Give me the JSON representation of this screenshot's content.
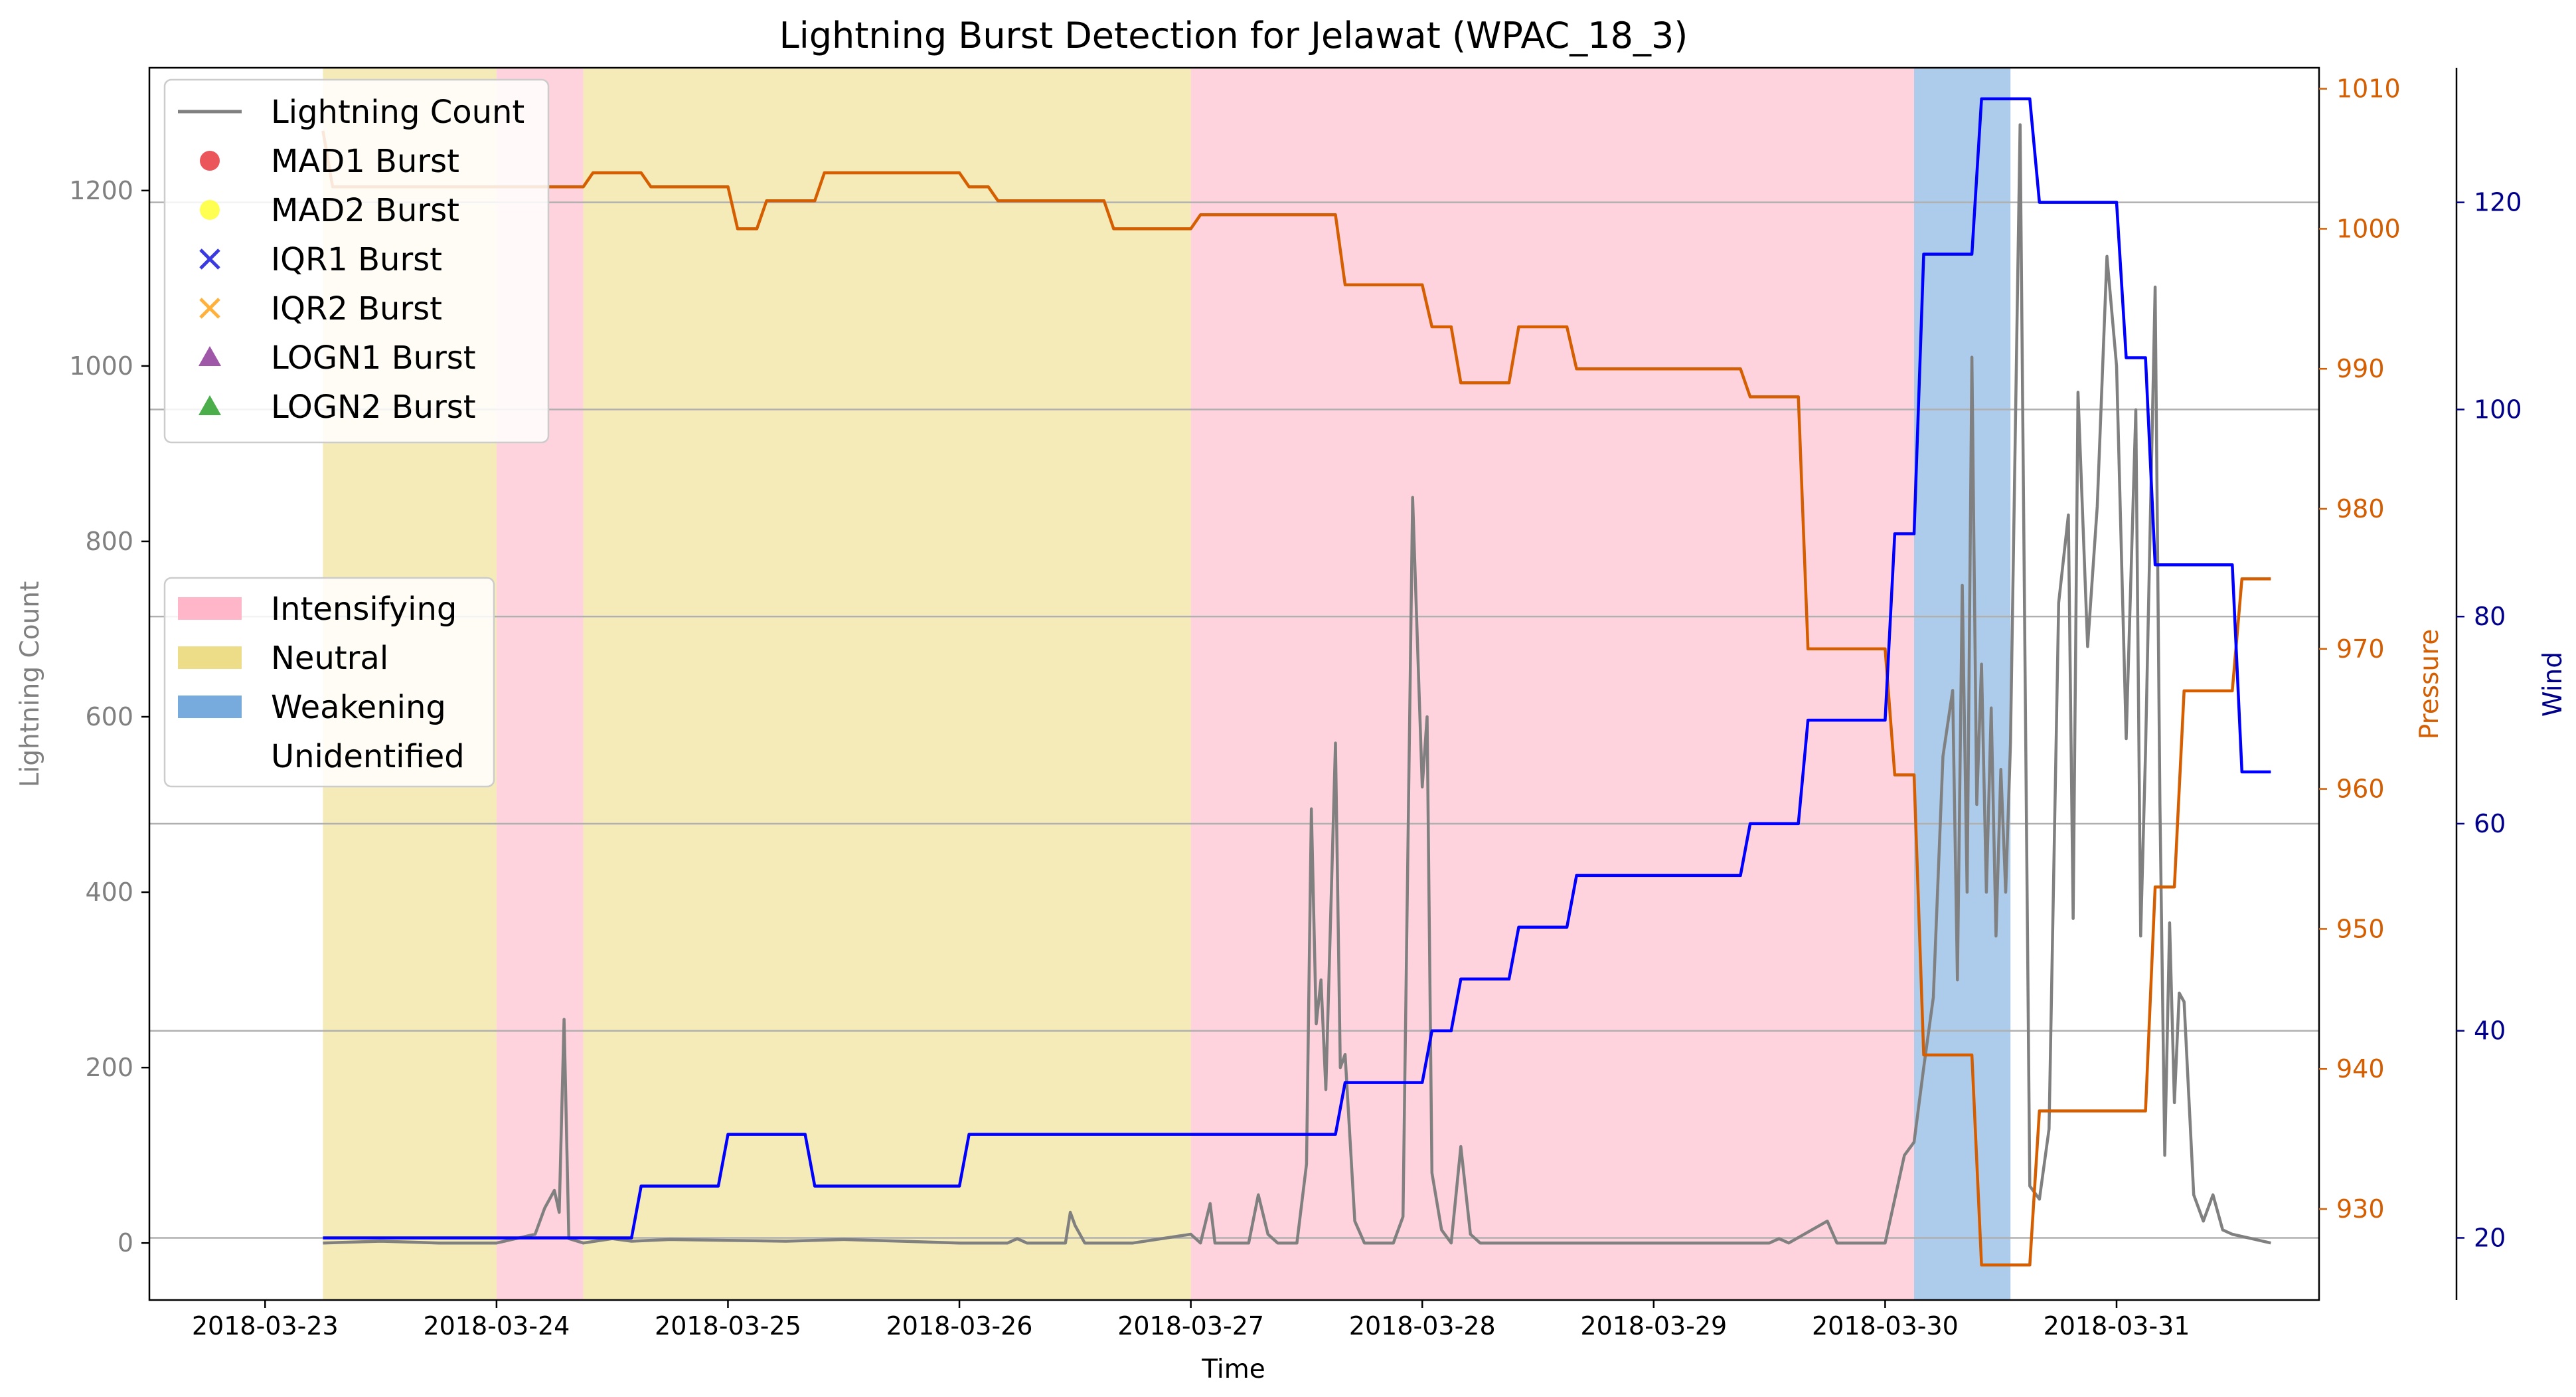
{
  "chart_data": {
    "type": "line",
    "title": "Lightning Burst Detection for Jelawat (WPAC_18_3)",
    "xlabel": "Time",
    "ylabel_left": "Lightning Count",
    "ylabel_pressure": "Pressure",
    "ylabel_wind": "Wind",
    "x_ticks": [
      "2018-03-23",
      "2018-03-24",
      "2018-03-25",
      "2018-03-26",
      "2018-03-27",
      "2018-03-28",
      "2018-03-29",
      "2018-03-30",
      "2018-03-31"
    ],
    "x_range": [
      "2018-03-22T12:00",
      "2018-03-31T21:00"
    ],
    "ylim_left": [
      -65,
      1340
    ],
    "yticks_left": [
      0,
      200,
      400,
      600,
      800,
      1000,
      1200
    ],
    "ylim_pressure": [
      923.5,
      1011.5
    ],
    "yticks_pressure": [
      930,
      940,
      950,
      960,
      970,
      980,
      990,
      1000,
      1010
    ],
    "ylim_wind": [
      14,
      133
    ],
    "yticks_wind": [
      20,
      40,
      60,
      80,
      100,
      120
    ],
    "grid": "horizontal at wind ticks",
    "colors": {
      "lightning": "#808080",
      "pressure": "#d55e00",
      "wind": "#0000ff",
      "intensifying": "#ffb6c8",
      "neutral": "#eedd88",
      "weakening": "#77aadd",
      "pressure_axis": "#d55e00",
      "wind_axis": "#00008b"
    },
    "legend_series": {
      "placement": "top-left",
      "entries": [
        {
          "label": "Lightning Count",
          "marker": "line",
          "color": "#808080"
        },
        {
          "label": "MAD1 Burst",
          "marker": "circle",
          "color": "#e8383d"
        },
        {
          "label": "MAD2 Burst",
          "marker": "circle",
          "color": "#ffff33"
        },
        {
          "label": "IQR1 Burst",
          "marker": "x",
          "color": "#3a3ae0"
        },
        {
          "label": "IQR2 Burst",
          "marker": "x",
          "color": "#ffb13b"
        },
        {
          "label": "LOGN1 Burst",
          "marker": "triangle",
          "color": "#8e3a98"
        },
        {
          "label": "LOGN2 Burst",
          "marker": "triangle",
          "color": "#2ca02c"
        }
      ]
    },
    "legend_phases": {
      "placement": "center-left",
      "entries": [
        {
          "label": "Intensifying",
          "color": "#ffb6c8"
        },
        {
          "label": "Neutral",
          "color": "#eedd88"
        },
        {
          "label": "Weakening",
          "color": "#77aadd"
        },
        {
          "label": "Unidentified",
          "color": "none"
        }
      ]
    },
    "phases": [
      {
        "phase": "Neutral",
        "start": "2018-03-23T06:00",
        "end": "2018-03-24T00:00"
      },
      {
        "phase": "Intensifying",
        "start": "2018-03-24T00:00",
        "end": "2018-03-24T09:00"
      },
      {
        "phase": "Neutral",
        "start": "2018-03-24T09:00",
        "end": "2018-03-27T00:00"
      },
      {
        "phase": "Intensifying",
        "start": "2018-03-27T00:00",
        "end": "2018-03-30T03:00"
      },
      {
        "phase": "Weakening",
        "start": "2018-03-30T03:00",
        "end": "2018-03-30T13:00"
      }
    ],
    "series": [
      {
        "name": "Lightning Count",
        "axis": "left",
        "points": [
          [
            "2018-03-23T06:00",
            0
          ],
          [
            "2018-03-23T12:00",
            2
          ],
          [
            "2018-03-23T18:00",
            0
          ],
          [
            "2018-03-24T00:00",
            0
          ],
          [
            "2018-03-24T04:00",
            10
          ],
          [
            "2018-03-24T05:00",
            40
          ],
          [
            "2018-03-24T06:00",
            60
          ],
          [
            "2018-03-24T06:30",
            35
          ],
          [
            "2018-03-24T07:00",
            255
          ],
          [
            "2018-03-24T07:30",
            5
          ],
          [
            "2018-03-24T09:00",
            0
          ],
          [
            "2018-03-24T12:00",
            5
          ],
          [
            "2018-03-24T14:00",
            2
          ],
          [
            "2018-03-24T18:00",
            4
          ],
          [
            "2018-03-25T00:00",
            3
          ],
          [
            "2018-03-25T06:00",
            2
          ],
          [
            "2018-03-25T12:00",
            4
          ],
          [
            "2018-03-25T18:00",
            2
          ],
          [
            "2018-03-26T00:00",
            0
          ],
          [
            "2018-03-26T05:00",
            0
          ],
          [
            "2018-03-26T06:00",
            5
          ],
          [
            "2018-03-26T07:00",
            0
          ],
          [
            "2018-03-26T11:00",
            0
          ],
          [
            "2018-03-26T11:30",
            35
          ],
          [
            "2018-03-26T12:00",
            20
          ],
          [
            "2018-03-26T13:00",
            0
          ],
          [
            "2018-03-26T18:00",
            0
          ],
          [
            "2018-03-27T00:00",
            10
          ],
          [
            "2018-03-27T01:00",
            0
          ],
          [
            "2018-03-27T02:00",
            45
          ],
          [
            "2018-03-27T02:30",
            0
          ],
          [
            "2018-03-27T06:00",
            0
          ],
          [
            "2018-03-27T07:00",
            55
          ],
          [
            "2018-03-27T08:00",
            10
          ],
          [
            "2018-03-27T09:00",
            0
          ],
          [
            "2018-03-27T11:00",
            0
          ],
          [
            "2018-03-27T12:00",
            90
          ],
          [
            "2018-03-27T12:30",
            495
          ],
          [
            "2018-03-27T13:00",
            250
          ],
          [
            "2018-03-27T13:30",
            300
          ],
          [
            "2018-03-27T14:00",
            175
          ],
          [
            "2018-03-27T15:00",
            570
          ],
          [
            "2018-03-27T15:30",
            200
          ],
          [
            "2018-03-27T16:00",
            215
          ],
          [
            "2018-03-27T17:00",
            25
          ],
          [
            "2018-03-27T18:00",
            0
          ],
          [
            "2018-03-27T21:00",
            0
          ],
          [
            "2018-03-27T22:00",
            30
          ],
          [
            "2018-03-27T23:00",
            850
          ],
          [
            "2018-03-28T00:00",
            520
          ],
          [
            "2018-03-28T00:30",
            600
          ],
          [
            "2018-03-28T01:00",
            80
          ],
          [
            "2018-03-28T02:00",
            15
          ],
          [
            "2018-03-28T03:00",
            0
          ],
          [
            "2018-03-28T04:00",
            110
          ],
          [
            "2018-03-28T05:00",
            10
          ],
          [
            "2018-03-28T06:00",
            0
          ],
          [
            "2018-03-28T12:00",
            0
          ],
          [
            "2018-03-28T18:00",
            0
          ],
          [
            "2018-03-29T00:00",
            0
          ],
          [
            "2018-03-29T06:00",
            0
          ],
          [
            "2018-03-29T12:00",
            0
          ],
          [
            "2018-03-29T13:00",
            5
          ],
          [
            "2018-03-29T14:00",
            0
          ],
          [
            "2018-03-29T18:00",
            25
          ],
          [
            "2018-03-29T19:00",
            0
          ],
          [
            "2018-03-30T00:00",
            0
          ],
          [
            "2018-03-30T01:00",
            50
          ],
          [
            "2018-03-30T02:00",
            100
          ],
          [
            "2018-03-30T03:00",
            115
          ],
          [
            "2018-03-30T04:00",
            200
          ],
          [
            "2018-03-30T05:00",
            280
          ],
          [
            "2018-03-30T06:00",
            555
          ],
          [
            "2018-03-30T07:00",
            630
          ],
          [
            "2018-03-30T07:30",
            300
          ],
          [
            "2018-03-30T08:00",
            750
          ],
          [
            "2018-03-30T08:30",
            400
          ],
          [
            "2018-03-30T09:00",
            1010
          ],
          [
            "2018-03-30T09:30",
            500
          ],
          [
            "2018-03-30T10:00",
            660
          ],
          [
            "2018-03-30T10:30",
            400
          ],
          [
            "2018-03-30T11:00",
            610
          ],
          [
            "2018-03-30T11:30",
            350
          ],
          [
            "2018-03-30T12:00",
            540
          ],
          [
            "2018-03-30T12:30",
            400
          ],
          [
            "2018-03-30T13:00",
            570
          ],
          [
            "2018-03-30T14:00",
            1275
          ],
          [
            "2018-03-30T15:00",
            65
          ],
          [
            "2018-03-30T16:00",
            50
          ],
          [
            "2018-03-30T17:00",
            130
          ],
          [
            "2018-03-30T18:00",
            730
          ],
          [
            "2018-03-30T19:00",
            830
          ],
          [
            "2018-03-30T19:30",
            370
          ],
          [
            "2018-03-30T20:00",
            970
          ],
          [
            "2018-03-30T21:00",
            680
          ],
          [
            "2018-03-30T22:00",
            840
          ],
          [
            "2018-03-30T23:00",
            1125
          ],
          [
            "2018-03-31T00:00",
            1000
          ],
          [
            "2018-03-31T01:00",
            575
          ],
          [
            "2018-03-31T02:00",
            950
          ],
          [
            "2018-03-31T02:30",
            350
          ],
          [
            "2018-03-31T03:00",
            560
          ],
          [
            "2018-03-31T04:00",
            1090
          ],
          [
            "2018-03-31T04:30",
            500
          ],
          [
            "2018-03-31T05:00",
            100
          ],
          [
            "2018-03-31T05:30",
            365
          ],
          [
            "2018-03-31T06:00",
            160
          ],
          [
            "2018-03-31T06:30",
            285
          ],
          [
            "2018-03-31T07:00",
            275
          ],
          [
            "2018-03-31T08:00",
            55
          ],
          [
            "2018-03-31T09:00",
            25
          ],
          [
            "2018-03-31T10:00",
            55
          ],
          [
            "2018-03-31T11:00",
            15
          ],
          [
            "2018-03-31T12:00",
            10
          ],
          [
            "2018-03-31T14:00",
            5
          ],
          [
            "2018-03-31T16:00",
            0
          ]
        ]
      },
      {
        "name": "Pressure",
        "axis": "pressure",
        "points": [
          [
            "2018-03-23T06:00",
            1007
          ],
          [
            "2018-03-23T07:00",
            1003
          ],
          [
            "2018-03-24T09:00",
            1003
          ],
          [
            "2018-03-24T10:00",
            1004
          ],
          [
            "2018-03-24T15:00",
            1004
          ],
          [
            "2018-03-24T16:00",
            1003
          ],
          [
            "2018-03-25T00:00",
            1003
          ],
          [
            "2018-03-25T01:00",
            1000
          ],
          [
            "2018-03-25T03:00",
            1000
          ],
          [
            "2018-03-25T04:00",
            1002
          ],
          [
            "2018-03-25T09:00",
            1002
          ],
          [
            "2018-03-25T10:00",
            1004
          ],
          [
            "2018-03-26T00:00",
            1004
          ],
          [
            "2018-03-26T01:00",
            1003
          ],
          [
            "2018-03-26T03:00",
            1003
          ],
          [
            "2018-03-26T04:00",
            1002
          ],
          [
            "2018-03-26T15:00",
            1002
          ],
          [
            "2018-03-26T16:00",
            1000
          ],
          [
            "2018-03-27T00:00",
            1000
          ],
          [
            "2018-03-27T01:00",
            1001
          ],
          [
            "2018-03-27T15:00",
            1001
          ],
          [
            "2018-03-27T16:00",
            996
          ],
          [
            "2018-03-28T00:00",
            996
          ],
          [
            "2018-03-28T01:00",
            993
          ],
          [
            "2018-03-28T03:00",
            993
          ],
          [
            "2018-03-28T04:00",
            989
          ],
          [
            "2018-03-28T09:00",
            989
          ],
          [
            "2018-03-28T10:00",
            993
          ],
          [
            "2018-03-28T15:00",
            993
          ],
          [
            "2018-03-28T16:00",
            990
          ],
          [
            "2018-03-29T09:00",
            990
          ],
          [
            "2018-03-29T10:00",
            988
          ],
          [
            "2018-03-29T15:00",
            988
          ],
          [
            "2018-03-29T16:00",
            970
          ],
          [
            "2018-03-30T00:00",
            970
          ],
          [
            "2018-03-30T01:00",
            961
          ],
          [
            "2018-03-30T03:00",
            961
          ],
          [
            "2018-03-30T04:00",
            941
          ],
          [
            "2018-03-30T09:00",
            941
          ],
          [
            "2018-03-30T10:00",
            926
          ],
          [
            "2018-03-30T15:00",
            926
          ],
          [
            "2018-03-30T16:00",
            937
          ],
          [
            "2018-03-31T03:00",
            937
          ],
          [
            "2018-03-31T04:00",
            953
          ],
          [
            "2018-03-31T06:00",
            953
          ],
          [
            "2018-03-31T07:00",
            967
          ],
          [
            "2018-03-31T12:00",
            967
          ],
          [
            "2018-03-31T13:00",
            975
          ],
          [
            "2018-03-31T16:00",
            975
          ]
        ]
      },
      {
        "name": "Wind",
        "axis": "wind",
        "points": [
          [
            "2018-03-23T06:00",
            20
          ],
          [
            "2018-03-24T14:00",
            20
          ],
          [
            "2018-03-24T15:00",
            25
          ],
          [
            "2018-03-24T23:00",
            25
          ],
          [
            "2018-03-25T00:00",
            30
          ],
          [
            "2018-03-25T08:00",
            30
          ],
          [
            "2018-03-25T09:00",
            25
          ],
          [
            "2018-03-26T00:00",
            25
          ],
          [
            "2018-03-26T01:00",
            30
          ],
          [
            "2018-03-27T15:00",
            30
          ],
          [
            "2018-03-27T16:00",
            35
          ],
          [
            "2018-03-28T00:00",
            35
          ],
          [
            "2018-03-28T01:00",
            40
          ],
          [
            "2018-03-28T03:00",
            40
          ],
          [
            "2018-03-28T04:00",
            45
          ],
          [
            "2018-03-28T09:00",
            45
          ],
          [
            "2018-03-28T10:00",
            50
          ],
          [
            "2018-03-28T15:00",
            50
          ],
          [
            "2018-03-28T16:00",
            55
          ],
          [
            "2018-03-29T09:00",
            55
          ],
          [
            "2018-03-29T10:00",
            60
          ],
          [
            "2018-03-29T15:00",
            60
          ],
          [
            "2018-03-29T16:00",
            70
          ],
          [
            "2018-03-30T00:00",
            70
          ],
          [
            "2018-03-30T01:00",
            88
          ],
          [
            "2018-03-30T03:00",
            88
          ],
          [
            "2018-03-30T04:00",
            115
          ],
          [
            "2018-03-30T09:00",
            115
          ],
          [
            "2018-03-30T10:00",
            130
          ],
          [
            "2018-03-30T15:00",
            130
          ],
          [
            "2018-03-30T16:00",
            120
          ],
          [
            "2018-03-31T00:00",
            120
          ],
          [
            "2018-03-31T01:00",
            105
          ],
          [
            "2018-03-31T03:00",
            105
          ],
          [
            "2018-03-31T04:00",
            85
          ],
          [
            "2018-03-31T12:00",
            85
          ],
          [
            "2018-03-31T13:00",
            65
          ],
          [
            "2018-03-31T16:00",
            65
          ]
        ]
      }
    ]
  }
}
